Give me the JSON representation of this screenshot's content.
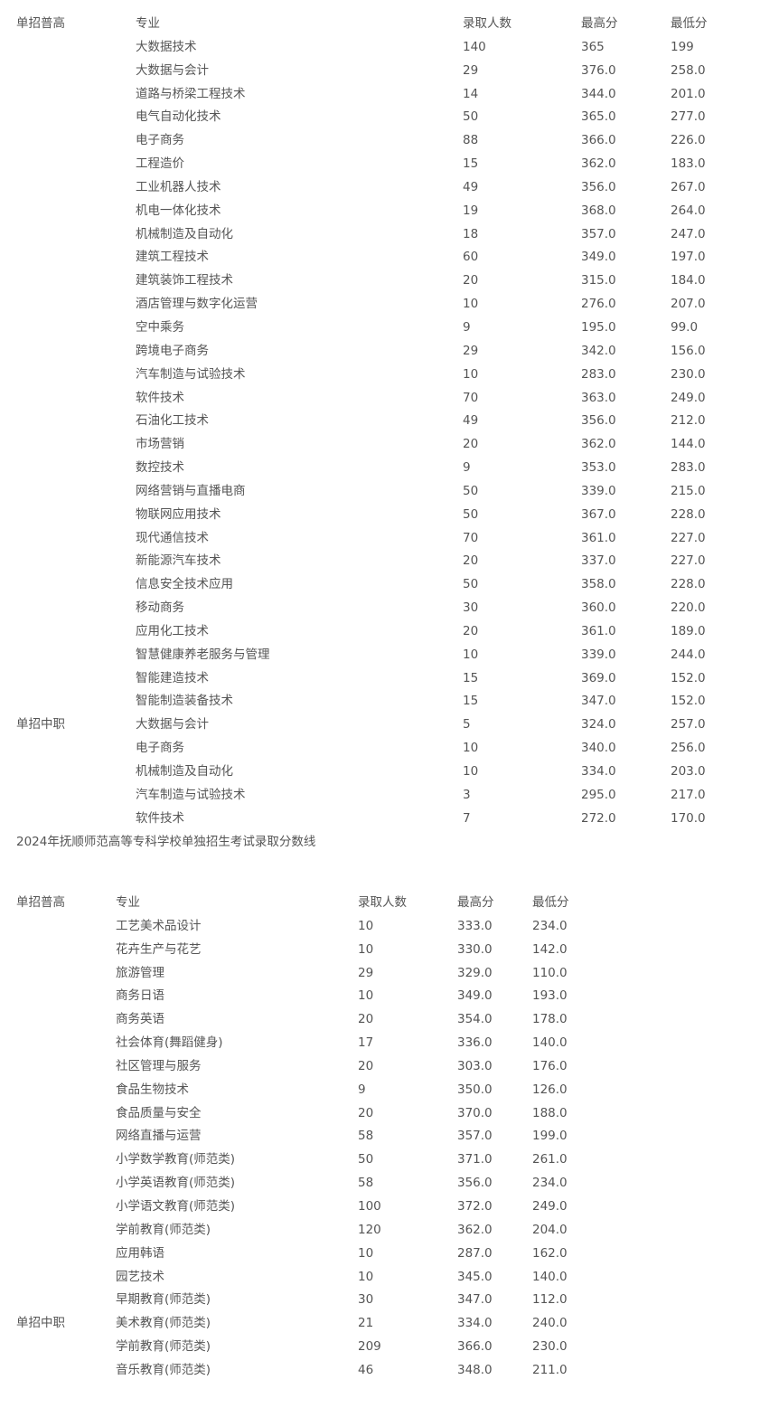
{
  "table1": {
    "header": {
      "group": "单招普高",
      "major": "专业",
      "count": "录取人数",
      "max": "最高分",
      "min": "最低分"
    },
    "rows": [
      {
        "group": "",
        "major": "大数据技术",
        "count": "140",
        "max": "365",
        "min": "199"
      },
      {
        "group": "",
        "major": "大数据与会计",
        "count": "29",
        "max": "376.0",
        "min": "258.0"
      },
      {
        "group": "",
        "major": "道路与桥梁工程技术",
        "count": "14",
        "max": "344.0",
        "min": "201.0"
      },
      {
        "group": "",
        "major": "电气自动化技术",
        "count": "50",
        "max": "365.0",
        "min": "277.0"
      },
      {
        "group": "",
        "major": "电子商务",
        "count": "88",
        "max": "366.0",
        "min": "226.0"
      },
      {
        "group": "",
        "major": "工程造价",
        "count": "15",
        "max": "362.0",
        "min": "183.0"
      },
      {
        "group": "",
        "major": "工业机器人技术",
        "count": "49",
        "max": "356.0",
        "min": "267.0"
      },
      {
        "group": "",
        "major": "机电一体化技术",
        "count": "19",
        "max": "368.0",
        "min": "264.0"
      },
      {
        "group": "",
        "major": "机械制造及自动化",
        "count": "18",
        "max": "357.0",
        "min": "247.0"
      },
      {
        "group": "",
        "major": "建筑工程技术",
        "count": "60",
        "max": "349.0",
        "min": "197.0"
      },
      {
        "group": "",
        "major": "建筑装饰工程技术",
        "count": "20",
        "max": "315.0",
        "min": "184.0"
      },
      {
        "group": "",
        "major": "酒店管理与数字化运营",
        "count": "10",
        "max": "276.0",
        "min": "207.0"
      },
      {
        "group": "",
        "major": "空中乘务",
        "count": "9",
        "max": "195.0",
        "min": "99.0"
      },
      {
        "group": "",
        "major": "跨境电子商务",
        "count": "29",
        "max": "342.0",
        "min": "156.0"
      },
      {
        "group": "",
        "major": "汽车制造与试验技术",
        "count": "10",
        "max": "283.0",
        "min": "230.0"
      },
      {
        "group": "",
        "major": "软件技术",
        "count": "70",
        "max": "363.0",
        "min": "249.0"
      },
      {
        "group": "",
        "major": "石油化工技术",
        "count": "49",
        "max": "356.0",
        "min": "212.0"
      },
      {
        "group": "",
        "major": "市场营销",
        "count": "20",
        "max": "362.0",
        "min": "144.0"
      },
      {
        "group": "",
        "major": "数控技术",
        "count": "9",
        "max": "353.0",
        "min": "283.0"
      },
      {
        "group": "",
        "major": "网络营销与直播电商",
        "count": "50",
        "max": "339.0",
        "min": "215.0"
      },
      {
        "group": "",
        "major": "物联网应用技术",
        "count": "50",
        "max": "367.0",
        "min": "228.0"
      },
      {
        "group": "",
        "major": "现代通信技术",
        "count": "70",
        "max": "361.0",
        "min": "227.0"
      },
      {
        "group": "",
        "major": "新能源汽车技术",
        "count": "20",
        "max": "337.0",
        "min": "227.0"
      },
      {
        "group": "",
        "major": "信息安全技术应用",
        "count": "50",
        "max": "358.0",
        "min": "228.0"
      },
      {
        "group": "",
        "major": "移动商务",
        "count": "30",
        "max": "360.0",
        "min": "220.0"
      },
      {
        "group": "",
        "major": "应用化工技术",
        "count": "20",
        "max": "361.0",
        "min": "189.0"
      },
      {
        "group": "",
        "major": "智慧健康养老服务与管理",
        "count": "10",
        "max": "339.0",
        "min": "244.0"
      },
      {
        "group": "",
        "major": "智能建造技术",
        "count": "15",
        "max": "369.0",
        "min": "152.0"
      },
      {
        "group": "",
        "major": "智能制造装备技术",
        "count": "15",
        "max": "347.0",
        "min": "152.0"
      },
      {
        "group": "单招中职",
        "major": "大数据与会计",
        "count": "5",
        "max": "324.0",
        "min": "257.0"
      },
      {
        "group": "",
        "major": "电子商务",
        "count": "10",
        "max": "340.0",
        "min": "256.0"
      },
      {
        "group": "",
        "major": "机械制造及自动化",
        "count": "10",
        "max": "334.0",
        "min": "203.0"
      },
      {
        "group": "",
        "major": "汽车制造与试验技术",
        "count": "3",
        "max": "295.0",
        "min": "217.0"
      },
      {
        "group": "",
        "major": "软件技术",
        "count": "7",
        "max": "272.0",
        "min": "170.0"
      }
    ]
  },
  "title2": "2024年抚顺师范高等专科学校单独招生考试录取分数线",
  "table2": {
    "header": {
      "group": "单招普高",
      "major": "专业",
      "count": "录取人数",
      "max": "最高分",
      "min": "最低分"
    },
    "rows": [
      {
        "group": "",
        "major": "工艺美术品设计",
        "count": "10",
        "max": "333.0",
        "min": "234.0"
      },
      {
        "group": "",
        "major": "花卉生产与花艺",
        "count": "10",
        "max": "330.0",
        "min": "142.0"
      },
      {
        "group": "",
        "major": "旅游管理",
        "count": "29",
        "max": "329.0",
        "min": "110.0"
      },
      {
        "group": "",
        "major": "商务日语",
        "count": "10",
        "max": "349.0",
        "min": "193.0"
      },
      {
        "group": "",
        "major": "商务英语",
        "count": "20",
        "max": "354.0",
        "min": "178.0"
      },
      {
        "group": "",
        "major": "社会体育(舞蹈健身)",
        "count": "17",
        "max": "336.0",
        "min": "140.0"
      },
      {
        "group": "",
        "major": "社区管理与服务",
        "count": "20",
        "max": "303.0",
        "min": "176.0"
      },
      {
        "group": "",
        "major": "食品生物技术",
        "count": "9",
        "max": "350.0",
        "min": "126.0"
      },
      {
        "group": "",
        "major": "食品质量与安全",
        "count": "20",
        "max": "370.0",
        "min": "188.0"
      },
      {
        "group": "",
        "major": "网络直播与运营",
        "count": "58",
        "max": "357.0",
        "min": "199.0"
      },
      {
        "group": "",
        "major": "小学数学教育(师范类)",
        "count": "50",
        "max": "371.0",
        "min": "261.0"
      },
      {
        "group": "",
        "major": "小学英语教育(师范类)",
        "count": "58",
        "max": "356.0",
        "min": "234.0"
      },
      {
        "group": "",
        "major": "小学语文教育(师范类)",
        "count": "100",
        "max": "372.0",
        "min": "249.0"
      },
      {
        "group": "",
        "major": "学前教育(师范类)",
        "count": "120",
        "max": "362.0",
        "min": "204.0"
      },
      {
        "group": "",
        "major": "应用韩语",
        "count": "10",
        "max": "287.0",
        "min": "162.0"
      },
      {
        "group": "",
        "major": "园艺技术",
        "count": "10",
        "max": "345.0",
        "min": "140.0"
      },
      {
        "group": "",
        "major": "早期教育(师范类)",
        "count": "30",
        "max": "347.0",
        "min": "112.0"
      },
      {
        "group": "单招中职",
        "major": "美术教育(师范类)",
        "count": "21",
        "max": "334.0",
        "min": "240.0"
      },
      {
        "group": "",
        "major": "学前教育(师范类)",
        "count": "209",
        "max": "366.0",
        "min": "230.0"
      },
      {
        "group": "",
        "major": "音乐教育(师范类)",
        "count": "46",
        "max": "348.0",
        "min": "211.0"
      }
    ]
  }
}
